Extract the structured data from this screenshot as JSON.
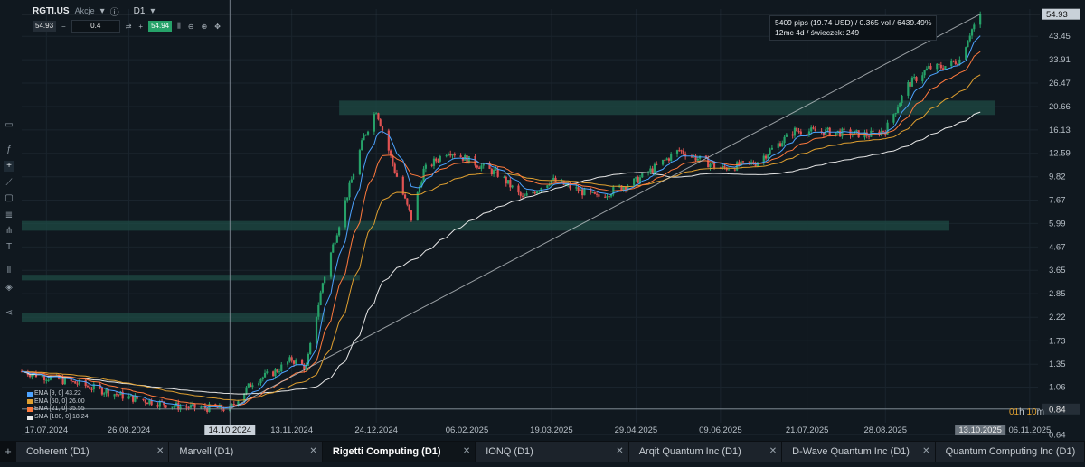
{
  "header": {
    "symbol": "RGTI.US",
    "symbol_type": "Akcje",
    "timeframe": "D1",
    "chevron_icon": "chevron-down-icon",
    "info_icon": "info-icon"
  },
  "trade_bar": {
    "sell_price": "54.93",
    "quantity": "0.4",
    "buy_price": "54.94",
    "minus_label": "−",
    "plus_label": "+",
    "swap_label": "⇄",
    "swap2_label": "⇄"
  },
  "tooltip": {
    "line1": "5409 pips (19.74 USD) / 0.365 vol / 6439.49%",
    "line2": "12mc 4d / świeczek: 249"
  },
  "price_axis": {
    "current_price": "54.93",
    "crosshair_price": "0.84",
    "ticks": [
      "43.45",
      "33.91",
      "26.47",
      "20.66",
      "16.13",
      "12.59",
      "9.82",
      "7.67",
      "5.99",
      "4.67",
      "3.65",
      "2.85",
      "2.22",
      "1.73",
      "1.35",
      "1.06",
      "0.84",
      "0.64"
    ]
  },
  "time_axis": {
    "ticks": [
      "17.07.2024",
      "26.08.2024",
      "13.11.2024",
      "24.12.2024",
      "06.02.2025",
      "19.03.2025",
      "29.04.2025",
      "09.06.2025",
      "21.07.2025",
      "28.08.2025",
      "06.11.2025"
    ],
    "crosshair_date": "14.10.2024",
    "last_date": "13.10.2025"
  },
  "legend": [
    {
      "label": "EMA [9, 0] 43.22"
    },
    {
      "label": "EMA [50, 0] 26.00"
    },
    {
      "label": "EMA [21, 0] 35.55"
    },
    {
      "label": "SMA [100, 0] 18.24"
    }
  ],
  "countdown": {
    "hours": "01",
    "h_unit": "h",
    "minutes": "10",
    "m_unit": "m"
  },
  "tabs": [
    {
      "label": "Coherent (D1)",
      "active": false
    },
    {
      "label": "Marvell (D1)",
      "active": false
    },
    {
      "label": "Rigetti Computing (D1)",
      "active": true
    },
    {
      "label": "IONQ (D1)",
      "active": false
    },
    {
      "label": "Arqit Quantum Inc (D1)",
      "active": false
    },
    {
      "label": "D-Wave Quantum Inc (D1)",
      "active": false
    },
    {
      "label": "Quantum Computing Inc (D1)",
      "active": false
    }
  ],
  "tools": [
    {
      "icon": "square-icon"
    },
    {
      "icon": "function-icon"
    },
    {
      "icon": "crosshair-icon"
    },
    {
      "icon": "trendline-icon"
    },
    {
      "icon": "rectangle-icon"
    },
    {
      "icon": "fibonacci-icon"
    },
    {
      "icon": "pitchfork-icon"
    },
    {
      "icon": "text-icon"
    },
    {
      "icon": "bars-icon"
    },
    {
      "icon": "layers-icon"
    },
    {
      "icon": "share-icon"
    }
  ],
  "chart_data": {
    "type": "candlestick",
    "scale": "log",
    "ylim": [
      0.6,
      58
    ],
    "x_range": [
      "2024-07-05",
      "2025-11-10"
    ],
    "grid": true,
    "colors": {
      "up": "#26a269",
      "down": "#e05252",
      "ema9": "#4da3ff",
      "ema21": "#ff7a3d",
      "ema50": "#e0a030",
      "sma100": "#e8e8e8",
      "zone": "#1e4a44"
    },
    "zones": [
      {
        "from": "2024-12-06",
        "to": "2025-10-20",
        "price_low": 18.9,
        "price_high": 22.0
      },
      {
        "from": "2024-07-05",
        "to": "2025-09-28",
        "price_low": 5.55,
        "price_high": 6.15
      },
      {
        "from": "2024-07-05",
        "to": "2024-12-16",
        "price_low": 3.28,
        "price_high": 3.48
      },
      {
        "from": "2024-07-05",
        "to": "2024-11-29",
        "price_low": 2.1,
        "price_high": 2.33
      }
    ],
    "trendline": [
      {
        "date": "2024-10-14",
        "price": 0.84
      },
      {
        "date": "2025-10-13",
        "price": 54.93
      }
    ],
    "price_path": [
      {
        "date": "2024-07-05",
        "price": 1.25
      },
      {
        "date": "2024-08-01",
        "price": 1.1
      },
      {
        "date": "2024-08-26",
        "price": 0.95
      },
      {
        "date": "2024-09-20",
        "price": 0.86
      },
      {
        "date": "2024-10-14",
        "price": 0.84
      },
      {
        "date": "2024-10-25",
        "price": 1.12
      },
      {
        "date": "2024-11-05",
        "price": 1.25
      },
      {
        "date": "2024-11-13",
        "price": 1.42
      },
      {
        "date": "2024-11-20",
        "price": 1.3
      },
      {
        "date": "2024-11-28",
        "price": 3.2
      },
      {
        "date": "2024-12-08",
        "price": 7.0
      },
      {
        "date": "2024-12-18",
        "price": 15.0
      },
      {
        "date": "2024-12-24",
        "price": 20.0
      },
      {
        "date": "2025-01-02",
        "price": 10.5
      },
      {
        "date": "2025-01-10",
        "price": 6.3
      },
      {
        "date": "2025-01-16",
        "price": 10.5
      },
      {
        "date": "2025-01-28",
        "price": 13.0
      },
      {
        "date": "2025-02-06",
        "price": 11.8
      },
      {
        "date": "2025-02-22",
        "price": 10.0
      },
      {
        "date": "2025-03-05",
        "price": 7.8
      },
      {
        "date": "2025-03-19",
        "price": 9.5
      },
      {
        "date": "2025-04-10",
        "price": 7.9
      },
      {
        "date": "2025-04-29",
        "price": 9.4
      },
      {
        "date": "2025-05-20",
        "price": 13.0
      },
      {
        "date": "2025-06-09",
        "price": 10.7
      },
      {
        "date": "2025-06-26",
        "price": 11.4
      },
      {
        "date": "2025-07-15",
        "price": 16.0
      },
      {
        "date": "2025-08-01",
        "price": 15.8
      },
      {
        "date": "2025-08-20",
        "price": 15.3
      },
      {
        "date": "2025-08-28",
        "price": 16.1
      },
      {
        "date": "2025-09-08",
        "price": 26.0
      },
      {
        "date": "2025-09-18",
        "price": 31.0
      },
      {
        "date": "2025-09-25",
        "price": 31.5
      },
      {
        "date": "2025-10-03",
        "price": 33.9
      },
      {
        "date": "2025-10-08",
        "price": 45.0
      },
      {
        "date": "2025-10-13",
        "price": 54.93
      }
    ]
  }
}
